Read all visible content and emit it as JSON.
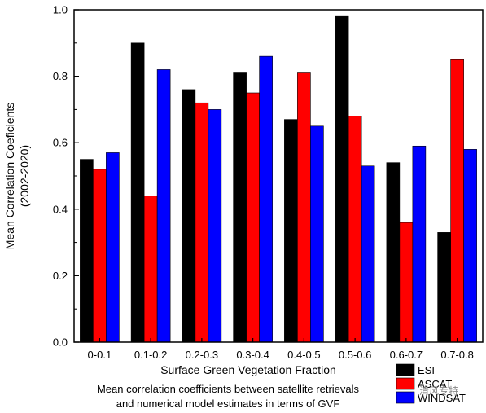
{
  "chart_data": {
    "type": "bar",
    "xlabel": "Surface Green Vegetation Fraction",
    "ylabel": [
      "Mean Correlation Coeficients",
      "(2002-2020)"
    ],
    "ylim": [
      0,
      1.0
    ],
    "yticks": [
      "0.0",
      "0.2",
      "0.4",
      "0.6",
      "0.8",
      "1.0"
    ],
    "categories": [
      "0-0.1",
      "0.1-0.2",
      "0.2-0.3",
      "0.3-0.4",
      "0.4-0.5",
      "0.5-0.6",
      "0.6-0.7",
      "0.7-0.8"
    ],
    "series": [
      {
        "name": "ESI",
        "color": "#000000",
        "values": [
          0.55,
          0.9,
          0.76,
          0.81,
          0.67,
          0.98,
          0.54,
          0.33
        ]
      },
      {
        "name": "ASCAT",
        "color": "#ff0000",
        "values": [
          0.52,
          0.44,
          0.72,
          0.75,
          0.81,
          0.68,
          0.36,
          0.85
        ]
      },
      {
        "name": "WINDSAT",
        "color": "#0000ff",
        "values": [
          0.57,
          0.82,
          0.7,
          0.86,
          0.65,
          0.53,
          0.59,
          0.58
        ]
      }
    ],
    "legend_position": "bottom-right",
    "annotation": [
      "Mean correlation coefficients between satellite retrievals",
      "and numerical model estimates in terms of GVF"
    ],
    "grid": false
  },
  "watermark": "清风专特"
}
